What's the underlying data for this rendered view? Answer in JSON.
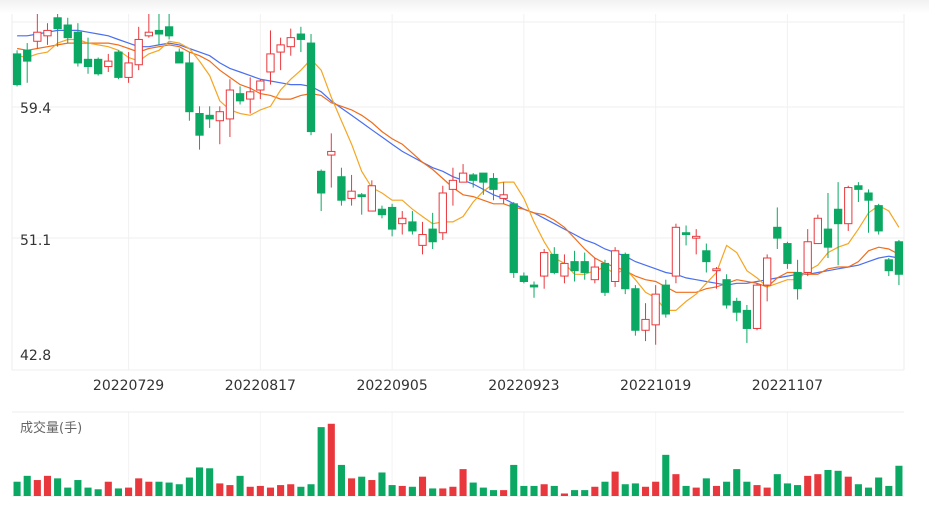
{
  "chart_data": [
    {
      "type": "candlestick",
      "title": "",
      "colors": {
        "up": "#e8383d",
        "down": "#0aa862",
        "ma5": "#f5a623",
        "ma10": "#f06d1b",
        "ma20": "#4a6ff0"
      },
      "yticks": [
        59.4,
        51.1,
        42.8
      ],
      "ylim": [
        42.8,
        61.9
      ],
      "xticks": [
        "20220729",
        "20220817",
        "20220905",
        "20220923",
        "20221019",
        "20221107"
      ],
      "xtick_index": [
        11,
        24,
        37,
        50,
        63,
        76
      ],
      "candles": [
        [
          60.3,
          58.6,
          58.5,
          60.5
        ],
        [
          60.5,
          59.9,
          58.7,
          60.9
        ],
        [
          61.0,
          61.5,
          60.6,
          62.6
        ],
        [
          61.3,
          61.6,
          60.8,
          62.0
        ],
        [
          62.3,
          61.7,
          60.7,
          62.7
        ],
        [
          61.9,
          61.2,
          60.9,
          62.3
        ],
        [
          61.5,
          59.8,
          59.6,
          62.0
        ],
        [
          60.0,
          59.6,
          59.2,
          61.2
        ],
        [
          60.0,
          59.2,
          59.1,
          60.1
        ],
        [
          59.6,
          59.9,
          59.3,
          60.3
        ],
        [
          60.4,
          59.0,
          58.9,
          60.5
        ],
        [
          59.0,
          59.8,
          58.7,
          60.4
        ],
        [
          59.7,
          61.1,
          59.4,
          61.8
        ],
        [
          61.3,
          61.5,
          61.2,
          63.6
        ],
        [
          61.6,
          61.4,
          60.8,
          62.6
        ],
        [
          61.8,
          61.3,
          61.1,
          63.2
        ],
        [
          60.4,
          59.8,
          59.8,
          60.6
        ],
        [
          59.8,
          57.1,
          56.6,
          60.4
        ],
        [
          57.0,
          55.8,
          55.0,
          57.4
        ],
        [
          56.9,
          56.7,
          56.2,
          57.4
        ],
        [
          56.6,
          57.1,
          55.3,
          57.4
        ],
        [
          56.7,
          58.3,
          55.7,
          58.9
        ],
        [
          58.1,
          57.7,
          57.5,
          58.5
        ],
        [
          57.8,
          58.2,
          57.0,
          59.0
        ],
        [
          58.3,
          58.8,
          57.8,
          58.9
        ],
        [
          59.3,
          60.3,
          58.6,
          61.6
        ],
        [
          60.4,
          60.8,
          59.4,
          61.2
        ],
        [
          60.7,
          61.2,
          60.2,
          61.7
        ],
        [
          61.4,
          61.1,
          60.4,
          61.8
        ],
        [
          60.9,
          56.0,
          55.8,
          61.4
        ],
        [
          53.8,
          52.6,
          51.6,
          53.9
        ],
        [
          54.7,
          54.9,
          52.9,
          55.9
        ],
        [
          53.5,
          52.2,
          51.9,
          54.0
        ],
        [
          52.3,
          52.7,
          51.9,
          53.6
        ],
        [
          52.5,
          52.4,
          51.4,
          52.6
        ],
        [
          51.6,
          53.0,
          51.6,
          53.3
        ],
        [
          51.7,
          51.4,
          51.2,
          51.9
        ],
        [
          51.8,
          50.6,
          50.2,
          52.0
        ],
        [
          50.9,
          51.2,
          50.3,
          51.6
        ],
        [
          51.0,
          50.5,
          50.3,
          51.6
        ],
        [
          49.7,
          50.3,
          49.2,
          51.0
        ],
        [
          50.6,
          49.9,
          49.5,
          51.5
        ],
        [
          50.4,
          52.6,
          50.0,
          53.0
        ],
        [
          52.8,
          53.3,
          51.9,
          54.0
        ],
        [
          53.2,
          53.7,
          53.2,
          54.2
        ],
        [
          53.6,
          53.3,
          52.9,
          53.7
        ],
        [
          53.7,
          53.2,
          52.5,
          53.7
        ],
        [
          53.4,
          52.8,
          52.2,
          53.7
        ],
        [
          52.3,
          52.5,
          52.0,
          53.2
        ],
        [
          52.0,
          48.2,
          47.9,
          52.1
        ],
        [
          48.0,
          47.7,
          47.6,
          48.2
        ],
        [
          47.5,
          47.4,
          46.8,
          47.7
        ],
        [
          48.0,
          49.3,
          47.3,
          49.5
        ],
        [
          49.2,
          48.2,
          48.1,
          49.6
        ],
        [
          48.0,
          48.7,
          47.6,
          49.2
        ],
        [
          48.8,
          48.3,
          47.7,
          49.4
        ],
        [
          48.8,
          48.2,
          47.8,
          49.3
        ],
        [
          47.8,
          48.5,
          47.6,
          49.0
        ],
        [
          48.7,
          47.1,
          46.9,
          48.9
        ],
        [
          47.7,
          49.4,
          47.4,
          49.6
        ],
        [
          49.2,
          47.3,
          47.0,
          49.3
        ],
        [
          47.3,
          45.0,
          44.7,
          47.5
        ],
        [
          45.0,
          45.6,
          44.4,
          46.5
        ],
        [
          45.3,
          47.0,
          44.2,
          47.5
        ],
        [
          47.5,
          45.9,
          45.7,
          47.8
        ],
        [
          48.0,
          50.7,
          47.6,
          50.9
        ],
        [
          50.4,
          50.3,
          49.7,
          50.8
        ],
        [
          50.1,
          50.2,
          49.2,
          50.6
        ],
        [
          49.4,
          48.8,
          48.2,
          49.8
        ],
        [
          48.3,
          48.4,
          47.3,
          48.5
        ],
        [
          47.8,
          46.4,
          46.2,
          48.1
        ],
        [
          46.6,
          46.0,
          45.5,
          46.8
        ],
        [
          46.1,
          45.1,
          44.3,
          46.4
        ],
        [
          45.1,
          47.5,
          45.0,
          47.6
        ],
        [
          47.5,
          49.0,
          46.6,
          49.2
        ],
        [
          50.7,
          50.1,
          49.5,
          51.8
        ],
        [
          49.8,
          48.7,
          48.4,
          49.9
        ],
        [
          48.2,
          47.3,
          46.7,
          48.9
        ],
        [
          48.2,
          49.9,
          48.0,
          50.6
        ],
        [
          49.8,
          51.2,
          49.8,
          51.4
        ],
        [
          50.6,
          49.6,
          49.0,
          52.6
        ],
        [
          51.7,
          50.9,
          48.6,
          53.2
        ],
        [
          50.9,
          52.9,
          50.5,
          53.0
        ],
        [
          53.0,
          52.8,
          52.1,
          53.2
        ],
        [
          52.6,
          52.2,
          50.4,
          52.8
        ],
        [
          51.9,
          50.5,
          50.3,
          52.0
        ],
        [
          48.9,
          48.3,
          48.0,
          49.0
        ],
        [
          49.9,
          48.1,
          47.5,
          50.0
        ]
      ],
      "ma5": [
        60.2,
        60.1,
        60.3,
        60.4,
        60.9,
        61.1,
        61.1,
        60.9,
        60.8,
        60.7,
        60.5,
        60.1,
        59.9,
        60.3,
        60.5,
        61.0,
        60.9,
        60.6,
        59.9,
        59.1,
        57.7,
        57.2,
        57.0,
        56.9,
        57.2,
        57.4,
        58.3,
        58.9,
        59.4,
        60.0,
        59.4,
        57.9,
        56.6,
        55.3,
        53.8,
        52.9,
        52.6,
        52.2,
        52.2,
        51.7,
        51.3,
        50.9,
        51.0,
        51.0,
        51.3,
        52.1,
        52.7,
        53.1,
        53.2,
        53.2,
        52.3,
        51.0,
        49.9,
        49.0,
        48.7,
        48.1,
        48.1,
        48.3,
        48.5,
        48.1,
        48.4,
        47.8,
        47.1,
        46.8,
        46.1,
        46.1,
        46.6,
        47.0,
        47.6,
        48.2,
        49.7,
        49.3,
        48.3,
        47.9,
        47.4,
        47.6,
        47.8,
        47.8,
        48.3,
        48.6,
        49.3,
        49.6,
        49.8,
        50.6,
        51.5,
        51.9,
        51.6,
        50.7
      ],
      "ma10": [
        60.6,
        60.5,
        60.6,
        60.7,
        60.8,
        60.9,
        60.9,
        60.9,
        60.9,
        60.9,
        60.8,
        60.6,
        60.4,
        60.6,
        60.7,
        60.8,
        60.7,
        60.4,
        60.2,
        59.9,
        59.4,
        59.0,
        58.6,
        58.4,
        58.1,
        58.0,
        57.8,
        57.8,
        58.0,
        58.1,
        58.0,
        57.6,
        57.4,
        57.2,
        56.9,
        56.5,
        56.0,
        55.6,
        55.3,
        54.8,
        54.3,
        53.9,
        53.4,
        52.9,
        52.5,
        52.4,
        52.2,
        52.0,
        52.0,
        51.8,
        51.7,
        51.5,
        51.4,
        51.1,
        50.7,
        50.1,
        49.5,
        49.0,
        48.7,
        48.5,
        48.3,
        48.0,
        47.8,
        47.7,
        47.4,
        47.1,
        47.1,
        47.1,
        47.3,
        47.4,
        47.6,
        47.8,
        47.7,
        47.6,
        47.4,
        47.9,
        48.2,
        48.2,
        48.1,
        48.1,
        48.4,
        48.5,
        48.5,
        48.8,
        49.4,
        49.6,
        49.5,
        49.2
      ],
      "ma20": [
        61.3,
        61.3,
        61.4,
        61.5,
        61.6,
        61.6,
        61.6,
        61.5,
        61.4,
        61.3,
        61.1,
        60.9,
        60.7,
        60.7,
        60.8,
        60.9,
        60.8,
        60.6,
        60.4,
        60.2,
        59.8,
        59.5,
        59.3,
        59.1,
        58.9,
        58.8,
        58.7,
        58.6,
        58.6,
        58.5,
        58.2,
        57.7,
        57.3,
        56.9,
        56.5,
        56.1,
        55.7,
        55.3,
        54.9,
        54.6,
        54.3,
        54.0,
        53.8,
        53.5,
        53.3,
        53.1,
        52.8,
        52.5,
        52.3,
        52.0,
        51.7,
        51.5,
        51.2,
        50.9,
        50.6,
        50.3,
        50.0,
        49.8,
        49.5,
        49.3,
        49.1,
        48.8,
        48.6,
        48.4,
        48.2,
        48.1,
        47.9,
        47.8,
        47.7,
        47.6,
        47.5,
        47.6,
        47.6,
        47.7,
        47.8,
        47.9,
        48.0,
        48.1,
        48.1,
        48.2,
        48.3,
        48.4,
        48.5,
        48.6,
        48.8,
        49.0,
        49.1,
        49.0
      ]
    },
    {
      "type": "bar",
      "title": "成交量(手)",
      "colors": {
        "up": "#e8383d",
        "down": "#0aa862"
      },
      "ylim": [
        0,
        1.0
      ],
      "values": [
        0.17,
        0.24,
        0.19,
        0.24,
        0.21,
        0.1,
        0.19,
        0.1,
        0.08,
        0.17,
        0.09,
        0.1,
        0.21,
        0.17,
        0.17,
        0.16,
        0.14,
        0.22,
        0.34,
        0.33,
        0.15,
        0.13,
        0.24,
        0.11,
        0.12,
        0.1,
        0.13,
        0.14,
        0.11,
        0.14,
        0.82,
        0.86,
        0.37,
        0.21,
        0.23,
        0.19,
        0.28,
        0.13,
        0.12,
        0.11,
        0.23,
        0.09,
        0.09,
        0.11,
        0.32,
        0.16,
        0.1,
        0.07,
        0.07,
        0.37,
        0.12,
        0.12,
        0.14,
        0.12,
        0.03,
        0.07,
        0.07,
        0.11,
        0.17,
        0.29,
        0.14,
        0.15,
        0.11,
        0.17,
        0.49,
        0.26,
        0.12,
        0.1,
        0.21,
        0.12,
        0.17,
        0.32,
        0.17,
        0.13,
        0.1,
        0.26,
        0.15,
        0.13,
        0.24,
        0.26,
        0.31,
        0.3,
        0.23,
        0.14,
        0.1,
        0.22,
        0.12,
        0.36
      ]
    }
  ]
}
